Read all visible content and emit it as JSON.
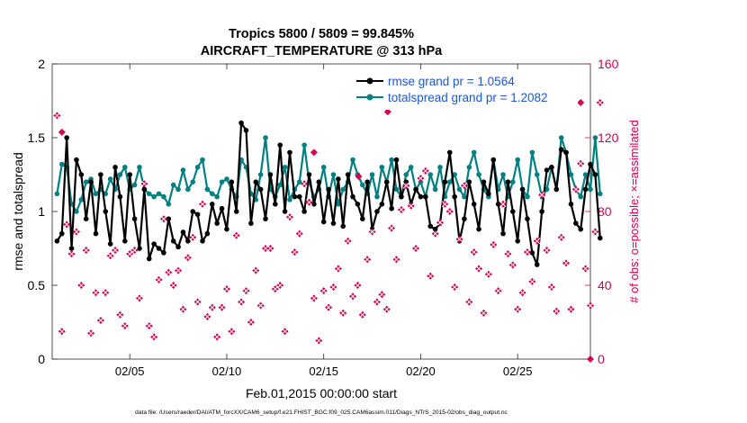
{
  "chart_data": {
    "type": "line",
    "title": "Tropics 5800 / 5809 = 99.845%",
    "subtitle": "AIRCRAFT_TEMPERATURE @ 313 hPa",
    "xlabel": "Feb.01,2015 00:00:00 start",
    "ylabel": "rmse and totalspread",
    "ylabel_right": "# of obs: o=possible; ×=assimilated",
    "footnote": "data file: /Users/raeder/DAI/ATM_forcXX/CAM6_setup/f.e21.FHIST_BGC.f09_025.CAM6assim.011/Diags_NTrS_2015-02/obs_diag_output.nc",
    "xlim": [
      1,
      28.75
    ],
    "ylim": [
      0,
      2
    ],
    "ylim_right": [
      0,
      160
    ],
    "x_ticks": [
      5,
      10,
      15,
      20,
      25
    ],
    "x_tick_labels": [
      "02/05",
      "02/10",
      "02/15",
      "02/20",
      "02/25"
    ],
    "y_ticks": [
      0,
      0.5,
      1,
      1.5,
      2
    ],
    "y_tick_labels": [
      "0",
      "0.5",
      "1",
      "1.5",
      "2"
    ],
    "y_right_ticks": [
      0,
      40,
      80,
      120,
      160
    ],
    "y_right_tick_labels": [
      "0",
      "40",
      "80",
      "120",
      "160"
    ],
    "x_start": 1.25,
    "x_step": 0.25,
    "series": [
      {
        "name": "rmse",
        "legend": "rmse grand pr = 1.0564",
        "color": "#000000",
        "values": [
          0.8,
          0.85,
          1.5,
          0.75,
          1.35,
          1.25,
          0.95,
          1.2,
          0.85,
          1.25,
          1.0,
          0.78,
          1.3,
          1.1,
          0.8,
          1.25,
          0.95,
          0.75,
          1.15,
          0.68,
          0.78,
          0.75,
          0.72,
          0.95,
          0.8,
          0.76,
          0.86,
          0.8,
          1.0,
          0.98,
          0.8,
          0.85,
          1.05,
          0.92,
          1.02,
          0.88,
          1.2,
          1.0,
          1.6,
          1.55,
          0.92,
          1.2,
          1.15,
          0.95,
          1.25,
          1.05,
          1.45,
          1.0,
          1.4,
          1.1,
          1.1,
          1.0,
          1.25,
          1.05,
          1.2,
          0.93,
          1.15,
          0.92,
          1.22,
          0.9,
          1.25,
          1.1,
          1.05,
          0.95,
          1.2,
          0.88,
          1.0,
          1.05,
          1.2,
          1.02,
          1.35,
          1.1,
          1.2,
          1.05,
          1.15,
          1.1,
          1.1,
          0.9,
          0.88,
          0.92,
          1.2,
          1.4,
          1.1,
          0.8,
          0.95,
          1.2,
          1.05,
          0.88,
          1.2,
          1.12,
          1.35,
          1.05,
          0.85,
          1.2,
          1.0,
          0.8,
          1.15,
          0.95,
          0.72,
          0.64,
          1.0,
          1.28,
          1.3,
          1.15,
          1.42,
          1.4,
          1.05,
          0.92,
          0.88,
          1.15,
          1.32,
          1.25,
          0.82
        ]
      },
      {
        "name": "totalspread",
        "legend": "totalspread grand pr = 1.2082",
        "color": "#00807f",
        "values": [
          1.12,
          1.32,
          1.3,
          1.05,
          1.0,
          1.08,
          1.2,
          1.22,
          1.12,
          1.15,
          1.12,
          1.22,
          1.15,
          1.25,
          1.3,
          1.15,
          1.18,
          1.3,
          1.15,
          1.12,
          1.1,
          1.12,
          1.1,
          1.05,
          1.18,
          1.15,
          1.28,
          1.15,
          1.2,
          1.3,
          1.35,
          1.15,
          1.12,
          1.1,
          1.2,
          1.22,
          1.15,
          1.1,
          1.35,
          1.3,
          1.12,
          1.08,
          1.25,
          1.5,
          1.15,
          1.1,
          1.18,
          1.3,
          1.08,
          1.15,
          1.2,
          1.45,
          1.2,
          1.1,
          1.15,
          1.3,
          1.1,
          1.25,
          1.05,
          1.15,
          1.2,
          1.35,
          1.25,
          1.18,
          1.12,
          1.25,
          1.1,
          1.3,
          1.2,
          1.35,
          1.15,
          1.1,
          1.25,
          1.3,
          1.15,
          1.2,
          1.1,
          1.25,
          1.15,
          1.3,
          1.1,
          1.2,
          1.25,
          1.15,
          1.1,
          1.3,
          1.4,
          1.25,
          1.15,
          1.1,
          1.35,
          1.15,
          1.25,
          1.1,
          1.2,
          1.35,
          1.15,
          1.1,
          1.4,
          1.25,
          1.1,
          1.15,
          1.3,
          1.15,
          1.5,
          1.4,
          1.25,
          1.15,
          1.1,
          1.25,
          1.15,
          1.5,
          1.12
        ]
      }
    ],
    "obs_color": "#d6004f",
    "obs_x_start": 1.25,
    "obs_x_step": 0.25,
    "obs_possible": [
      132,
      15,
      73,
      57,
      69,
      40,
      59,
      14,
      36,
      21,
      36,
      56,
      59,
      24,
      18,
      57,
      59,
      33,
      95,
      18,
      12,
      43,
      76,
      47,
      40,
      48,
      27,
      55,
      66,
      31,
      84,
      23,
      28,
      12,
      28,
      38,
      15,
      67,
      31,
      37,
      20,
      48,
      29,
      60,
      60,
      38,
      40,
      15,
      77,
      58,
      68,
      95,
      85,
      33,
      10,
      37,
      28,
      39,
      49,
      25,
      64,
      34,
      40,
      24,
      54,
      69,
      31,
      35,
      27,
      71,
      54,
      81,
      94,
      83,
      60,
      98,
      102,
      45,
      68,
      74,
      84,
      80,
      39,
      65,
      94,
      31,
      58,
      49,
      25,
      46,
      62,
      37,
      84,
      57,
      51,
      27,
      36,
      58,
      42,
      64,
      89,
      59,
      39,
      26,
      66,
      52,
      27,
      92,
      106,
      49,
      29,
      69,
      139
    ],
    "obs_assimilated": [
      132,
      15,
      73,
      57,
      69,
      40,
      59,
      14,
      36,
      21,
      36,
      56,
      59,
      24,
      18,
      57,
      59,
      33,
      95,
      18,
      12,
      43,
      76,
      47,
      40,
      48,
      27,
      55,
      66,
      31,
      84,
      23,
      28,
      12,
      28,
      38,
      15,
      67,
      31,
      37,
      20,
      48,
      29,
      60,
      60,
      38,
      40,
      15,
      77,
      58,
      68,
      95,
      85,
      33,
      10,
      37,
      28,
      39,
      49,
      25,
      64,
      34,
      40,
      24,
      54,
      69,
      31,
      35,
      27,
      71,
      54,
      81,
      94,
      83,
      60,
      98,
      102,
      45,
      68,
      74,
      84,
      80,
      39,
      65,
      94,
      31,
      58,
      49,
      25,
      46,
      62,
      37,
      84,
      57,
      51,
      27,
      36,
      58,
      42,
      64,
      89,
      59,
      39,
      26,
      66,
      52,
      27,
      92,
      106,
      49,
      29,
      69,
      139
    ],
    "obs_extra_points": [
      {
        "x": 1.5,
        "y": 123
      },
      {
        "x": 18.3,
        "y": 134
      },
      {
        "x": 14.5,
        "y": 112
      },
      {
        "x": 16.8,
        "y": 99
      },
      {
        "x": 28.75,
        "y": 0
      },
      {
        "x": 28.25,
        "y": 139
      }
    ]
  }
}
